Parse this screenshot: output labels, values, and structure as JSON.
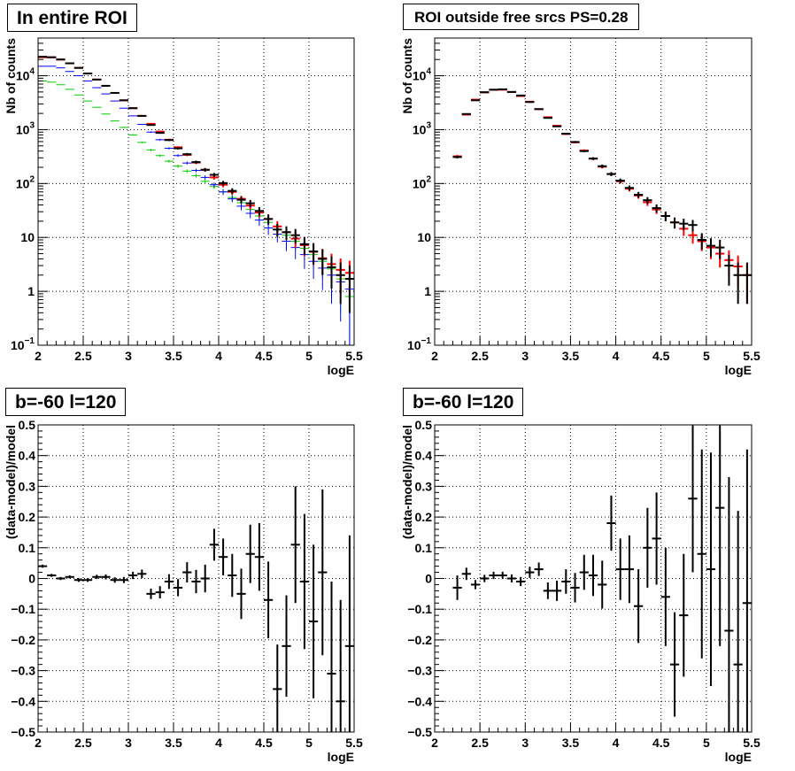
{
  "colors": {
    "data": "#000000",
    "total_model": "#ff0000",
    "model_blue": "#0000ff",
    "model_green": "#00cc00"
  },
  "chart_data": [
    {
      "type": "scatter",
      "title": "In entire ROI",
      "xlabel": "logE",
      "ylabel": "Nb of counts",
      "log_y": true,
      "xlim": [
        2,
        5.5
      ],
      "ylim": [
        0.1,
        50000
      ],
      "grid": true,
      "x_ticks": [
        "2",
        "2.5",
        "3",
        "3.5",
        "4",
        "4.5",
        "5",
        "5.5"
      ],
      "y_ticks": [
        {
          "v": 0.1,
          "base": "10",
          "exp": "−1"
        },
        {
          "v": 1,
          "base": "1",
          "exp": ""
        },
        {
          "v": 10,
          "base": "10",
          "exp": ""
        },
        {
          "v": 100,
          "base": "10",
          "exp": "2"
        },
        {
          "v": 1000,
          "base": "10",
          "exp": "3"
        },
        {
          "v": 10000,
          "base": "10",
          "exp": "4"
        }
      ],
      "bin_width": 0.1,
      "series": [
        {
          "color": "#00cc00",
          "line_width": 1,
          "x": [
            2.05,
            2.15,
            2.25,
            2.35,
            2.45,
            2.55,
            2.65,
            2.75,
            2.85,
            2.95,
            3.05,
            3.15,
            3.25,
            3.35,
            3.45,
            3.55,
            3.65,
            3.75,
            3.85,
            3.95,
            4.05,
            4.15,
            4.25,
            4.35,
            4.45,
            4.55,
            4.65,
            4.75,
            4.85,
            4.95,
            5.05,
            5.15,
            5.25,
            5.35,
            5.45
          ],
          "y": [
            8000,
            7600,
            6800,
            5600,
            4400,
            3400,
            2600,
            1950,
            1450,
            1100,
            800,
            580,
            420,
            330,
            260,
            210,
            170,
            140,
            110,
            88,
            70,
            55,
            44,
            33,
            25,
            19,
            14,
            11,
            8.5,
            6.3,
            4.8,
            3.6,
            2.6,
            1.7,
            0.8
          ]
        },
        {
          "color": "#0000ff",
          "line_width": 1,
          "x": [
            2.05,
            2.15,
            2.25,
            2.35,
            2.45,
            2.55,
            2.65,
            2.75,
            2.85,
            2.95,
            3.05,
            3.15,
            3.25,
            3.35,
            3.45,
            3.55,
            3.65,
            3.75,
            3.85,
            3.95,
            4.05,
            4.15,
            4.25,
            4.35,
            4.45,
            4.55,
            4.65,
            4.75,
            4.85,
            4.95,
            5.05,
            5.15,
            5.25,
            5.35,
            5.45
          ],
          "y": [
            15000,
            15000,
            14000,
            12000,
            10000,
            8000,
            6000,
            4600,
            3400,
            2500,
            1800,
            1250,
            900,
            650,
            450,
            330,
            240,
            175,
            130,
            95,
            70,
            52,
            38,
            28,
            21,
            15,
            11.5,
            8.5,
            6.5,
            4.8,
            3.6,
            2.7,
            2.0,
            1.5,
            1.1
          ]
        },
        {
          "color": "#ff0000",
          "line_width": 2,
          "x": [
            2.05,
            2.15,
            2.25,
            2.35,
            2.45,
            2.55,
            2.65,
            2.75,
            2.85,
            2.95,
            3.05,
            3.15,
            3.25,
            3.35,
            3.45,
            3.55,
            3.65,
            3.75,
            3.85,
            3.95,
            4.05,
            4.15,
            4.25,
            4.35,
            4.45,
            4.55,
            4.65,
            4.75,
            4.85,
            4.95,
            5.05,
            5.15,
            5.25,
            5.35,
            5.45
          ],
          "y": [
            22000,
            22000,
            20000,
            17000,
            14000,
            11000,
            8500,
            6500,
            4800,
            3500,
            2500,
            1800,
            1280,
            920,
            650,
            470,
            340,
            245,
            180,
            130,
            95,
            70,
            52,
            39,
            29,
            22,
            16,
            12.5,
            9.5,
            7.2,
            5.4,
            4.1,
            3.2,
            2.5,
            2.2
          ]
        },
        {
          "color": "#000000",
          "line_width": 2,
          "x": [
            2.05,
            2.15,
            2.25,
            2.35,
            2.45,
            2.55,
            2.65,
            2.75,
            2.85,
            2.95,
            3.05,
            3.15,
            3.25,
            3.35,
            3.45,
            3.55,
            3.65,
            3.75,
            3.85,
            3.95,
            4.05,
            4.15,
            4.25,
            4.35,
            4.45,
            4.55,
            4.65,
            4.75,
            4.85,
            4.95,
            5.05,
            5.15,
            5.25,
            5.35,
            5.45
          ],
          "y": [
            22500,
            22000,
            20000,
            17000,
            14000,
            11000,
            8500,
            6500,
            4800,
            3500,
            2500,
            1800,
            1220,
            870,
            640,
            450,
            350,
            250,
            180,
            145,
            102,
            73,
            50,
            43,
            31,
            22,
            14,
            12.5,
            11,
            7.5,
            5.5,
            4.0,
            2.8,
            2.0,
            1.7
          ]
        }
      ]
    },
    {
      "type": "scatter",
      "title": "ROI outside free srcs PS=0.28",
      "xlabel": "logE",
      "ylabel": "Nb of counts",
      "log_y": true,
      "xlim": [
        2,
        5.5
      ],
      "ylim": [
        0.1,
        50000
      ],
      "grid": true,
      "x_ticks": [
        "2",
        "2.5",
        "3",
        "3.5",
        "4",
        "4.5",
        "5",
        "5.5"
      ],
      "y_ticks": [
        {
          "v": 0.1,
          "base": "10",
          "exp": "−1"
        },
        {
          "v": 1,
          "base": "1",
          "exp": ""
        },
        {
          "v": 10,
          "base": "10",
          "exp": ""
        },
        {
          "v": 100,
          "base": "10",
          "exp": "2"
        },
        {
          "v": 1000,
          "base": "10",
          "exp": "3"
        },
        {
          "v": 10000,
          "base": "10",
          "exp": "4"
        }
      ],
      "bin_width": 0.1,
      "series": [
        {
          "color": "#ff0000",
          "line_width": 2,
          "x": [
            2.25,
            2.35,
            2.45,
            2.55,
            2.65,
            2.75,
            2.85,
            2.95,
            3.05,
            3.15,
            3.25,
            3.35,
            3.45,
            3.55,
            3.65,
            3.75,
            3.85,
            3.95,
            4.05,
            4.15,
            4.25,
            4.35,
            4.45,
            4.55,
            4.65,
            4.75,
            4.85,
            4.95,
            5.05,
            5.15,
            5.25,
            5.35,
            5.45
          ],
          "y": [
            320,
            1900,
            3600,
            4900,
            5500,
            5500,
            5000,
            4200,
            3300,
            2400,
            1700,
            1180,
            830,
            580,
            410,
            290,
            205,
            150,
            110,
            80,
            60,
            45,
            33,
            25,
            19,
            14.5,
            11,
            8.5,
            6.5,
            5.0,
            3.8,
            2.9,
            2.0
          ]
        },
        {
          "color": "#000000",
          "line_width": 2,
          "x": [
            2.25,
            2.35,
            2.45,
            2.55,
            2.65,
            2.75,
            2.85,
            2.95,
            3.05,
            3.15,
            3.25,
            3.35,
            3.45,
            3.55,
            3.65,
            3.75,
            3.85,
            3.95,
            4.05,
            4.15,
            4.25,
            4.35,
            4.45,
            4.55,
            4.65,
            4.75,
            4.85,
            4.95,
            5.05,
            5.15,
            5.25,
            5.35,
            5.45
          ],
          "y": [
            310,
            1950,
            3500,
            4950,
            5500,
            5600,
            5000,
            4300,
            3250,
            2400,
            1650,
            1150,
            840,
            590,
            400,
            290,
            210,
            150,
            113,
            83,
            62,
            49,
            35,
            25,
            19,
            18,
            17,
            9,
            7,
            6.5,
            3,
            2,
            2
          ]
        }
      ]
    },
    {
      "type": "scatter",
      "title": "b=-60 l=120",
      "xlabel": "logE",
      "ylabel": "(data-model)/model",
      "log_y": false,
      "xlim": [
        2,
        5.5
      ],
      "ylim": [
        -0.5,
        0.5
      ],
      "grid": true,
      "x_ticks": [
        "2",
        "2.5",
        "3",
        "3.5",
        "4",
        "4.5",
        "5",
        "5.5"
      ],
      "y_ticks": [
        {
          "v": -0.5,
          "label": "−0.5"
        },
        {
          "v": -0.4,
          "label": "−0.4"
        },
        {
          "v": -0.3,
          "label": "−0.3"
        },
        {
          "v": -0.2,
          "label": "−0.2"
        },
        {
          "v": -0.1,
          "label": "−0.1"
        },
        {
          "v": 0,
          "label": "0"
        },
        {
          "v": 0.1,
          "label": "0.1"
        },
        {
          "v": 0.2,
          "label": "0.2"
        },
        {
          "v": 0.3,
          "label": "0.3"
        },
        {
          "v": 0.4,
          "label": "0.4"
        },
        {
          "v": 0.5,
          "label": "0.5"
        }
      ],
      "bin_width": 0.1,
      "series": [
        {
          "color": "#000000",
          "line_width": 2,
          "x": [
            2.05,
            2.15,
            2.25,
            2.35,
            2.45,
            2.55,
            2.65,
            2.75,
            2.85,
            2.95,
            3.05,
            3.15,
            3.25,
            3.35,
            3.45,
            3.55,
            3.65,
            3.75,
            3.85,
            3.95,
            4.05,
            4.15,
            4.25,
            4.35,
            4.45,
            4.55,
            4.65,
            4.75,
            4.85,
            4.95,
            5.05,
            5.15,
            5.25,
            5.35,
            5.45
          ],
          "y": [
            0.04,
            0.01,
            0.0,
            0.005,
            -0.005,
            -0.005,
            0.005,
            0.005,
            -0.005,
            -0.005,
            0.01,
            0.015,
            -0.05,
            -0.045,
            -0.01,
            -0.03,
            0.02,
            -0.01,
            0.0,
            0.11,
            0.07,
            0.01,
            -0.05,
            0.08,
            0.07,
            -0.07,
            -0.36,
            -0.22,
            0.11,
            -0.01,
            -0.14,
            0.02,
            -0.31,
            -0.4,
            -0.22
          ],
          "err": [
            0.005,
            0.005,
            0.005,
            0.005,
            0.006,
            0.006,
            0.007,
            0.008,
            0.009,
            0.01,
            0.012,
            0.014,
            0.017,
            0.02,
            0.024,
            0.028,
            0.033,
            0.038,
            0.045,
            0.052,
            0.06,
            0.07,
            0.082,
            0.095,
            0.11,
            0.125,
            0.145,
            0.165,
            0.19,
            0.22,
            0.25,
            0.27,
            0.3,
            0.33,
            0.36
          ]
        }
      ]
    },
    {
      "type": "scatter",
      "title": "b=-60 l=120",
      "xlabel": "logE",
      "ylabel": "(data-model)/model",
      "log_y": false,
      "xlim": [
        2,
        5.5
      ],
      "ylim": [
        -0.5,
        0.5
      ],
      "grid": true,
      "x_ticks": [
        "2",
        "2.5",
        "3",
        "3.5",
        "4",
        "4.5",
        "5",
        "5.5"
      ],
      "y_ticks": [
        {
          "v": -0.5,
          "label": "−0.5"
        },
        {
          "v": -0.4,
          "label": "−0.4"
        },
        {
          "v": -0.3,
          "label": "−0.3"
        },
        {
          "v": -0.2,
          "label": "−0.2"
        },
        {
          "v": -0.1,
          "label": "−0.1"
        },
        {
          "v": 0,
          "label": "0"
        },
        {
          "v": 0.1,
          "label": "0.1"
        },
        {
          "v": 0.2,
          "label": "0.2"
        },
        {
          "v": 0.3,
          "label": "0.3"
        },
        {
          "v": 0.4,
          "label": "0.4"
        },
        {
          "v": 0.5,
          "label": "0.5"
        }
      ],
      "bin_width": 0.1,
      "series": [
        {
          "color": "#000000",
          "line_width": 2,
          "x": [
            2.25,
            2.35,
            2.45,
            2.55,
            2.65,
            2.75,
            2.85,
            2.95,
            3.05,
            3.15,
            3.25,
            3.35,
            3.45,
            3.55,
            3.65,
            3.75,
            3.85,
            3.95,
            4.05,
            4.15,
            4.25,
            4.35,
            4.45,
            4.55,
            4.65,
            4.75,
            4.85,
            4.95,
            5.05,
            5.15,
            5.25,
            5.35,
            5.45
          ],
          "y": [
            -0.03,
            0.015,
            -0.02,
            0.0,
            0.01,
            0.01,
            0.0,
            -0.01,
            0.02,
            0.03,
            -0.04,
            -0.04,
            -0.01,
            -0.03,
            0.02,
            0.01,
            -0.02,
            0.18,
            0.03,
            0.03,
            -0.09,
            0.1,
            0.13,
            -0.06,
            -0.28,
            -0.12,
            0.26,
            0.08,
            0.03,
            0.23,
            -0.17,
            -0.28,
            -0.08
          ],
          "err": [
            0.04,
            0.02,
            0.015,
            0.012,
            0.012,
            0.012,
            0.013,
            0.015,
            0.018,
            0.022,
            0.027,
            0.033,
            0.04,
            0.048,
            0.057,
            0.067,
            0.078,
            0.09,
            0.1,
            0.11,
            0.12,
            0.13,
            0.15,
            0.16,
            0.17,
            0.2,
            0.24,
            0.34,
            0.38,
            0.45,
            0.5,
            0.5,
            0.5
          ]
        }
      ]
    }
  ]
}
